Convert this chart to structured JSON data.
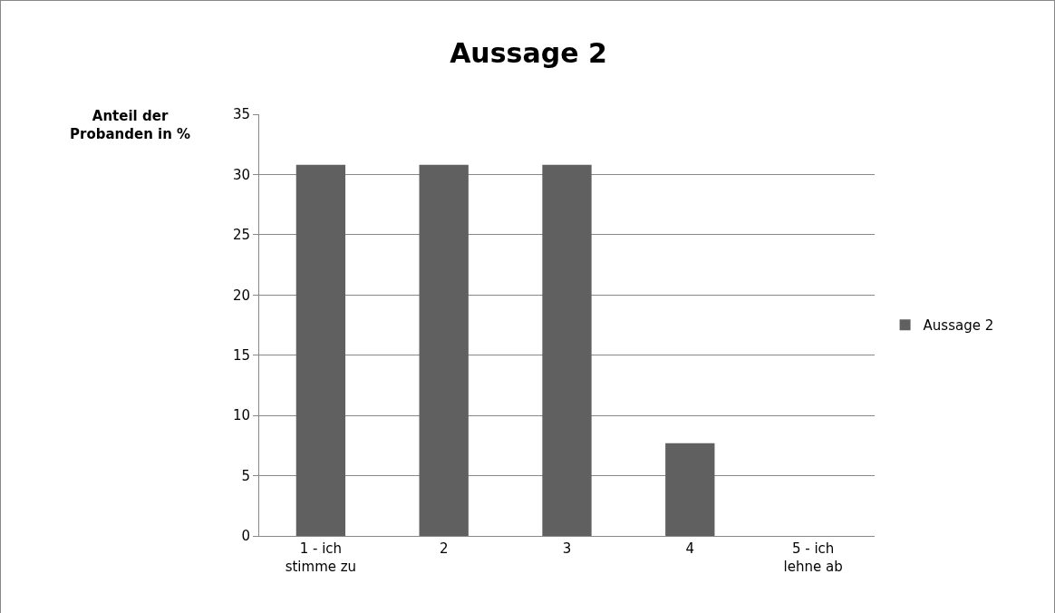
{
  "chart_data": {
    "type": "bar",
    "title": "Aussage 2",
    "ylabel": "Anteil der Probanden in %",
    "categories": [
      "1 - ich stimme zu",
      "2",
      "3",
      "4",
      "5 - ich lehne ab"
    ],
    "series": [
      {
        "name": "Aussage 2",
        "color": "#606060",
        "values": [
          30.8,
          30.8,
          30.8,
          7.7,
          0
        ]
      }
    ],
    "ylim": [
      0,
      35
    ],
    "yticks": [
      0,
      5,
      10,
      15,
      20,
      25,
      30,
      35
    ],
    "grid": "y",
    "legend": "right"
  }
}
